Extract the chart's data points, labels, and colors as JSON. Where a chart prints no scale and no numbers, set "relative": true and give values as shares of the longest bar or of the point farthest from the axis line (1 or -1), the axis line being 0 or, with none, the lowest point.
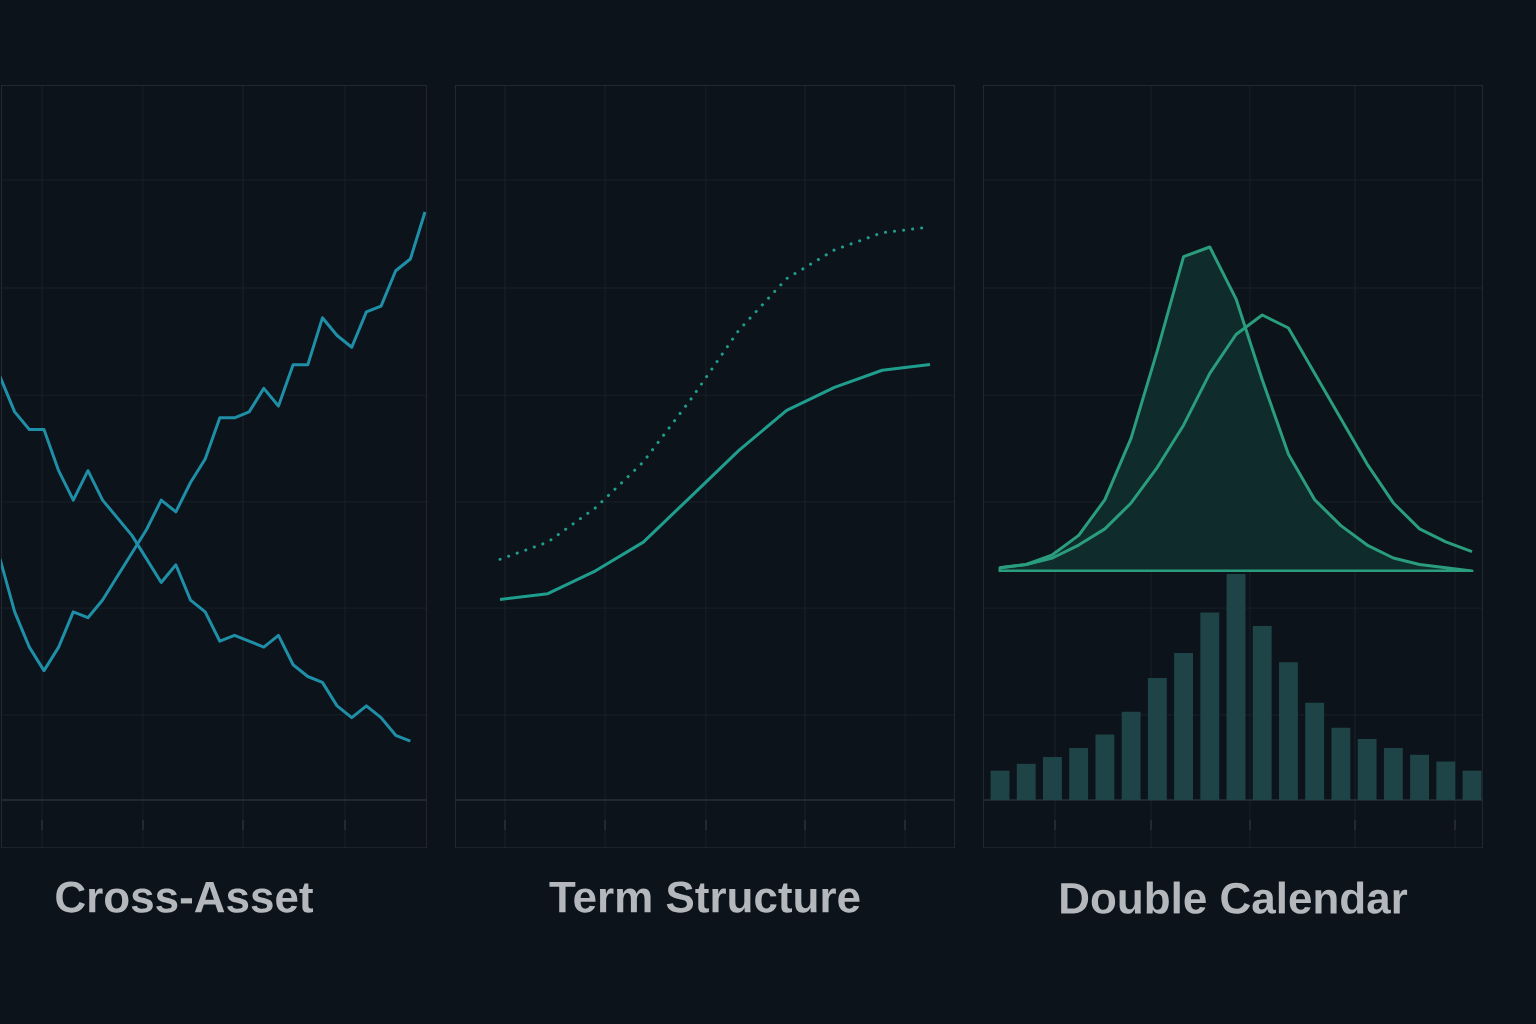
{
  "chart_data": [
    {
      "type": "line",
      "title": "Cross-Asset",
      "relative": true,
      "grid": true,
      "categories": [
        null,
        null,
        null,
        null,
        null,
        null,
        null,
        null,
        null,
        null,
        null,
        null,
        null,
        null,
        null,
        null,
        null,
        null,
        null,
        null,
        null,
        null,
        null,
        null,
        null,
        null,
        null,
        null,
        null,
        null
      ],
      "series": [
        {
          "color": "#1e8fa6",
          "values": [
            0.41,
            0.32,
            0.26,
            0.22,
            0.26,
            0.32,
            0.31,
            0.34,
            0.38,
            0.42,
            0.46,
            0.51,
            0.49,
            0.54,
            0.58,
            0.65,
            0.65,
            0.66,
            0.7,
            0.67,
            0.74,
            0.74,
            0.82,
            0.79,
            0.77,
            0.83,
            0.84,
            0.9,
            0.92,
            1
          ]
        },
        {
          "color": "#1e8fa6",
          "values": [
            0.72,
            0.66,
            0.63,
            0.63,
            0.56,
            0.51,
            0.56,
            0.51,
            0.48,
            0.45,
            0.41,
            0.37,
            0.4,
            0.34,
            0.32,
            0.27,
            0.28,
            0.27,
            0.26,
            0.28,
            0.23,
            0.21,
            0.2,
            0.16,
            0.14,
            0.16,
            0.14,
            0.11,
            0.1,
            null
          ]
        }
      ]
    },
    {
      "type": "line",
      "title": "Term Structure",
      "relative": true,
      "grid": true,
      "categories": [
        null,
        null,
        null,
        null,
        null,
        null,
        null,
        null,
        null,
        null
      ],
      "series": [
        {
          "color": "#1f9e8e",
          "line_style": "dotted",
          "values": [
            0.42,
            0.45,
            0.51,
            0.59,
            0.7,
            0.82,
            0.91,
            0.96,
            0.99,
            1
          ]
        },
        {
          "color": "#1f9e8e",
          "line_style": "solid",
          "values": [
            0.35,
            0.36,
            0.4,
            0.45,
            0.53,
            0.61,
            0.68,
            0.72,
            0.75,
            0.76
          ]
        }
      ]
    },
    {
      "type": "line",
      "relative": true,
      "grid": true,
      "categories": [
        null,
        null,
        null,
        null,
        null,
        null,
        null,
        null,
        null,
        null,
        null,
        null,
        null,
        null,
        null,
        null,
        null,
        null,
        null
      ],
      "series": [
        {
          "type": "area",
          "color": "#2a9d7f",
          "values": [
            0.01,
            0.02,
            0.05,
            0.11,
            0.22,
            0.41,
            0.68,
            0.97,
            1,
            0.84,
            0.59,
            0.36,
            0.22,
            0.14,
            0.08,
            0.04,
            0.02,
            0.01,
            0
          ]
        },
        {
          "type": "line",
          "color": "#2a9d7f",
          "values": [
            0.01,
            0.02,
            0.04,
            0.08,
            0.13,
            0.21,
            0.32,
            0.45,
            0.61,
            0.73,
            0.79,
            0.75,
            0.61,
            0.47,
            0.33,
            0.21,
            0.13,
            0.09,
            0.06
          ]
        }
      ]
    },
    {
      "type": "bar",
      "title": "Double Calendar",
      "relative": true,
      "grid": true,
      "categories": [
        null,
        null,
        null,
        null,
        null,
        null,
        null,
        null,
        null,
        null,
        null,
        null,
        null,
        null,
        null,
        null,
        null,
        null,
        null
      ],
      "series": [
        {
          "color": "#1f4448",
          "values": [
            0.13,
            0.16,
            0.19,
            0.23,
            0.29,
            0.39,
            0.54,
            0.65,
            0.83,
            1,
            0.77,
            0.61,
            0.43,
            0.32,
            0.27,
            0.23,
            0.2,
            0.17,
            0.13
          ]
        }
      ]
    }
  ]
}
